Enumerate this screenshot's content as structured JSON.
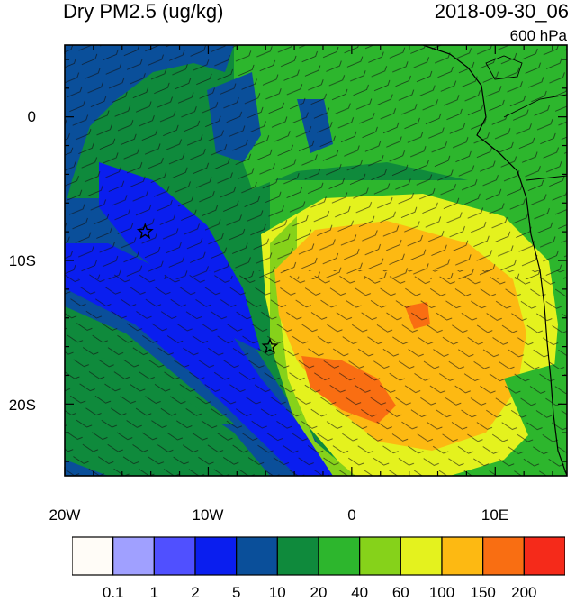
{
  "title_left": "Dry PM2.5 (ug/kg)",
  "title_right": "2018-09-30_06",
  "level_label": "600 hPa",
  "lat_labels": [
    "0",
    "10S",
    "20S"
  ],
  "lon_labels": [
    "20W",
    "10W",
    "0",
    "10E"
  ],
  "colorbar": {
    "levels": [
      "0.1",
      "1",
      "2",
      "5",
      "10",
      "20",
      "40",
      "60",
      "100",
      "150",
      "200"
    ],
    "colors": [
      "#fffcf7",
      "#a0a0ff",
      "#5050ff",
      "#0a1eef",
      "#0a4f9a",
      "#0f8a3c",
      "#2db62d",
      "#86d21a",
      "#e4f21e",
      "#fdb912",
      "#f96e12",
      "#f52a1a"
    ]
  },
  "map": {
    "lon_range": [
      -20,
      15
    ],
    "lat_range": [
      -25,
      5
    ],
    "markers": [
      {
        "name": "star-marker-1",
        "lon": -14.4,
        "lat": -8.0
      },
      {
        "name": "star-marker-2",
        "lon": -5.7,
        "lat": -16.0
      }
    ]
  }
}
